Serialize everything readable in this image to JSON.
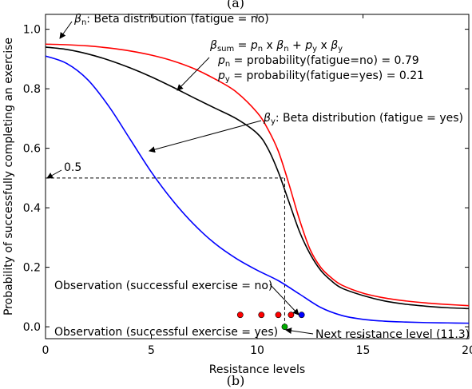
{
  "figure": {
    "top_caption": "(a)",
    "bottom_caption": "(b)"
  },
  "chart_data": {
    "type": "line",
    "xlabel": "Resistance levels",
    "ylabel": "Probability of successfully completing an exercise",
    "xlim": [
      0,
      20
    ],
    "ylim": [
      -0.04,
      1.05
    ],
    "xticks": [
      0,
      5,
      10,
      15,
      20
    ],
    "xtick_labels": [
      "0",
      "5",
      "10",
      "15",
      "20"
    ],
    "yticks": [
      0.0,
      0.2,
      0.4,
      0.6,
      0.8,
      1.0
    ],
    "ytick_labels": [
      "0.0",
      "0.2",
      "0.4",
      "0.6",
      "0.8",
      "1.0"
    ],
    "grid": false,
    "series": [
      {
        "key": "beta_n",
        "color": "#ff0000",
        "x": [
          0,
          1,
          2,
          3,
          4,
          5,
          6,
          7,
          8,
          9,
          10,
          10.5,
          11,
          11.5,
          12,
          12.5,
          13,
          13.5,
          14,
          15,
          16,
          17,
          18,
          19,
          20
        ],
        "y": [
          0.95,
          0.948,
          0.944,
          0.937,
          0.927,
          0.913,
          0.894,
          0.868,
          0.833,
          0.79,
          0.72,
          0.665,
          0.59,
          0.48,
          0.36,
          0.26,
          0.2,
          0.165,
          0.14,
          0.113,
          0.097,
          0.087,
          0.08,
          0.075,
          0.071
        ]
      },
      {
        "key": "beta_sum",
        "color": "#000000",
        "x": [
          0,
          1,
          2,
          3,
          4,
          5,
          6,
          7,
          8,
          9,
          10,
          10.5,
          11,
          11.5,
          12,
          12.5,
          13,
          13.5,
          14,
          15,
          16,
          17,
          18,
          19,
          20
        ],
        "y": [
          0.94,
          0.932,
          0.917,
          0.896,
          0.87,
          0.84,
          0.806,
          0.77,
          0.735,
          0.7,
          0.65,
          0.6,
          0.52,
          0.42,
          0.32,
          0.245,
          0.19,
          0.155,
          0.13,
          0.105,
          0.087,
          0.076,
          0.069,
          0.064,
          0.061
        ]
      },
      {
        "key": "beta_y",
        "color": "#0000ff",
        "x": [
          0,
          1,
          2,
          3,
          4,
          5,
          6,
          7,
          8,
          9,
          10,
          11,
          12,
          13,
          14,
          15,
          16,
          17,
          18,
          19,
          20
        ],
        "y": [
          0.91,
          0.885,
          0.83,
          0.74,
          0.63,
          0.52,
          0.425,
          0.345,
          0.28,
          0.23,
          0.19,
          0.155,
          0.11,
          0.065,
          0.038,
          0.025,
          0.019,
          0.016,
          0.014,
          0.013,
          0.012
        ]
      }
    ],
    "observations": {
      "fail_color": "#ff0000",
      "success_color": "#0000ff",
      "next_color": "#00aa00",
      "failed_x": [
        9.2,
        10.2,
        11.0,
        11.6
      ],
      "failed_y": [
        0.04,
        0.04,
        0.04,
        0.04
      ],
      "success_x": [
        12.1
      ],
      "success_y": [
        0.04
      ],
      "next_x": 11.3,
      "next_y": 0.0
    },
    "reference_line": {
      "y": 0.5,
      "x": 11.3,
      "label": "0.5"
    },
    "annotations": {
      "beta_n_sym": "β",
      "beta_n_sub": "n",
      "beta_n_text": ": Beta distribution (fatigue = no)",
      "beta_sum_sym": "β",
      "beta_sum_sub": "sum",
      "beta_sum_rhs_1": " = ",
      "beta_sum_p1": "p",
      "beta_sum_p1_sub": "n",
      "beta_sum_times1": " x ",
      "beta_sum_b1": "β",
      "beta_sum_b1_sub": "n",
      "beta_sum_plus": " + ",
      "beta_sum_p2": "p",
      "beta_sum_p2_sub": "y",
      "beta_sum_times2": " x ",
      "beta_sum_b2": "β",
      "beta_sum_b2_sub": "y",
      "pn_sym": "p",
      "pn_sub": "n",
      "pn_text": " = probability(fatigue=no) = 0.79",
      "py_sym": "p",
      "py_sub": "y",
      "py_text": " = probability(fatigue=yes) = 0.21",
      "beta_y_sym": "β",
      "beta_y_sub": "y",
      "beta_y_text": ": Beta distribution (fatigue = yes)",
      "obs_no": "Observation (successful exercise = no)",
      "obs_yes": "Observation (successful exercise = yes)",
      "next_level": "Next resistance level (11.3)"
    }
  }
}
